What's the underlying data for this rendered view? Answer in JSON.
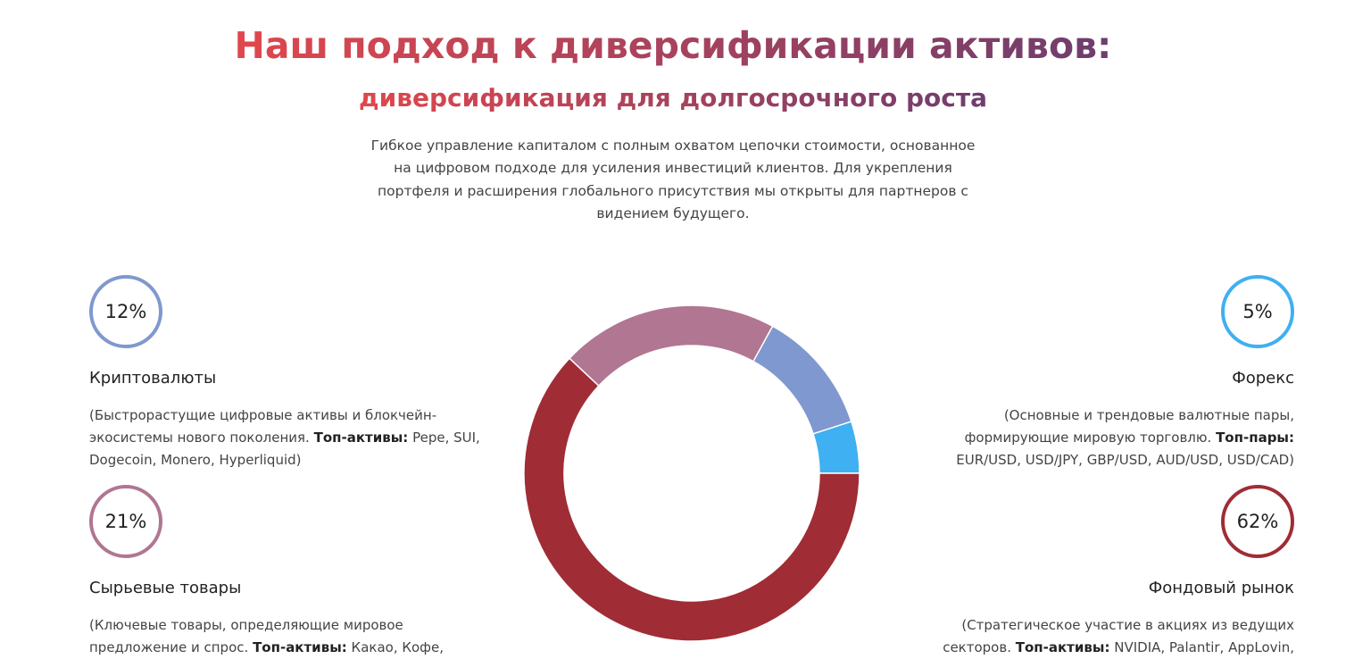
{
  "header": {
    "title": "Наш подход к диверсификации активов:",
    "subtitle": "диверсификация для долгосрочного роста",
    "intro": [
      "Гибкое управление капиталом с полным охватом цепочки стоимости, основанное",
      "на цифровом подходе для усиления инвестиций клиентов. Для укрепления",
      "портфеля и расширения глобального присутствия мы открыты для партнеров с",
      "видением будущего."
    ]
  },
  "chart_data": {
    "type": "pie",
    "categories": [
      "Форекс",
      "Криптовалюты",
      "Сырьевые товары",
      "Фондовый рынок"
    ],
    "values": [
      5,
      12,
      21,
      62
    ],
    "value_labels": [
      "5%",
      "12%",
      "21%",
      "62%"
    ],
    "colors": [
      "#3fb0f2",
      "#7f98cf",
      "#b07692",
      "#a02c35"
    ]
  },
  "cards": [
    {
      "description": {
        "text": "(Основные и трендовые валютные пары, формирующие мировую торговлю.",
        "label": "Топ-пары:",
        "assets": "EUR/USD, USD/JPY, GBP/USD, AUD/USD, USD/CAD)"
      }
    },
    {
      "description": {
        "text": "(Быстрорастущие цифровые активы и блокчейн-экосистемы нового поколения.",
        "label": "Топ-активы:",
        "assets": "Pepe, SUI, Dogecoin, Monero, Hyperliquid)"
      }
    },
    {
      "description": {
        "text": "(Ключевые товары, определяющие мировое предложение и спрос.",
        "label": "Топ-активы:",
        "assets": "Какао, Кофе,"
      }
    },
    {
      "description": {
        "text": "(Стратегическое участие в акциях из ведущих секторов.",
        "label": "Топ-активы:",
        "assets": "NVIDIA, Palantir, AppLovin,"
      }
    }
  ]
}
